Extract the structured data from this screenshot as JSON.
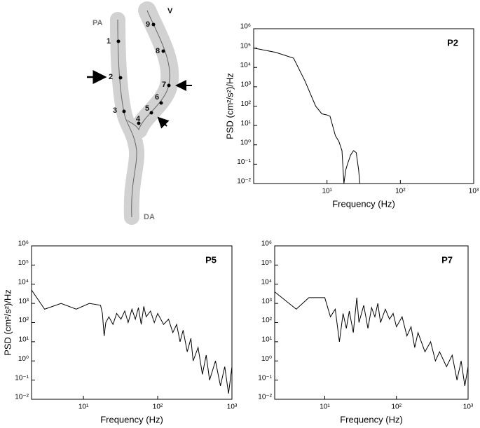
{
  "diagram": {
    "labels": [
      "PA",
      "V",
      "DA",
      "1",
      "2",
      "3",
      "4",
      "5",
      "6",
      "7",
      "8",
      "9"
    ]
  },
  "chart_data": [
    {
      "type": "line",
      "title": "P2",
      "xlabel": "Frequency (Hz)",
      "ylabel": "PSD (cm²/s²)/Hz",
      "xlog": true,
      "ylog": true,
      "color": "#000000",
      "x": [
        1,
        2,
        3.5,
        5,
        7,
        8.5,
        10,
        11,
        13,
        14.5,
        16,
        17,
        18,
        19,
        21,
        23,
        25,
        27,
        28
      ],
      "values": [
        100000,
        60000,
        30000,
        2000,
        100,
        40,
        35,
        30,
        3,
        1.5,
        0.5,
        0.01,
        0.05,
        0.1,
        0.3,
        0.5,
        0.4,
        0.05,
        0.01
      ],
      "xlim": [
        1,
        1000
      ],
      "ylim": [
        0.01,
        1000000
      ],
      "xticks": [
        {
          "value": 10,
          "label": "10¹"
        },
        {
          "value": 100,
          "label": "10²"
        },
        {
          "value": 1000,
          "label": "10³"
        }
      ],
      "yticks": [
        {
          "value": 0.01,
          "label": "10⁻²"
        },
        {
          "value": 0.1,
          "label": "10⁻¹"
        },
        {
          "value": 1,
          "label": "10⁰"
        },
        {
          "value": 10,
          "label": "10¹"
        },
        {
          "value": 100,
          "label": "10²"
        },
        {
          "value": 1000,
          "label": "10³"
        },
        {
          "value": 10000,
          "label": "10⁴"
        },
        {
          "value": 100000,
          "label": "10⁵"
        },
        {
          "value": 1000000,
          "label": "10⁶"
        }
      ]
    },
    {
      "type": "line",
      "title": "P5",
      "xlabel": "Frequency (Hz)",
      "ylabel": "PSD (cm²/s²)/Hz",
      "xlog": true,
      "ylog": true,
      "color": "#000000",
      "x": [
        2,
        3,
        5,
        8,
        12,
        17,
        18,
        19,
        20,
        22,
        25,
        28,
        32,
        36,
        40,
        45,
        50,
        55,
        60,
        65,
        70,
        80,
        90,
        100,
        120,
        140,
        160,
        180,
        200,
        220,
        250,
        280,
        300,
        350,
        400,
        450,
        500,
        600,
        700,
        800,
        900,
        1000
      ],
      "values": [
        5000,
        500,
        1000,
        500,
        1000,
        800,
        300,
        20,
        100,
        200,
        80,
        300,
        150,
        400,
        100,
        500,
        150,
        600,
        80,
        700,
        200,
        400,
        100,
        300,
        80,
        150,
        30,
        80,
        10,
        40,
        3,
        15,
        1,
        5,
        0.2,
        2,
        0.1,
        1,
        0.05,
        0.5,
        0.02,
        0.5
      ],
      "xlim": [
        2,
        1000
      ],
      "ylim": [
        0.01,
        1000000
      ],
      "xticks": [
        {
          "value": 10,
          "label": "10¹"
        },
        {
          "value": 100,
          "label": "10²"
        },
        {
          "value": 1000,
          "label": "10³"
        }
      ],
      "yticks": [
        {
          "value": 0.01,
          "label": "10⁻²"
        },
        {
          "value": 0.1,
          "label": "10⁻¹"
        },
        {
          "value": 1,
          "label": "10⁰"
        },
        {
          "value": 10,
          "label": "10¹"
        },
        {
          "value": 100,
          "label": "10²"
        },
        {
          "value": 1000,
          "label": "10³"
        },
        {
          "value": 10000,
          "label": "10⁴"
        },
        {
          "value": 100000,
          "label": "10⁵"
        },
        {
          "value": 1000000,
          "label": "10⁶"
        }
      ]
    },
    {
      "type": "line",
      "title": "P7",
      "xlabel": "Frequency (Hz)",
      "xlog": true,
      "ylog": true,
      "color": "#000000",
      "x": [
        2,
        4,
        6,
        10,
        12,
        14,
        16,
        18,
        20,
        22,
        25,
        28,
        30,
        35,
        40,
        45,
        50,
        55,
        60,
        70,
        80,
        90,
        100,
        120,
        140,
        160,
        180,
        200,
        250,
        300,
        350,
        400,
        500,
        600,
        700,
        800,
        900,
        1000
      ],
      "values": [
        4000,
        500,
        2000,
        2000,
        200,
        500,
        10,
        300,
        50,
        400,
        30,
        2000,
        100,
        800,
        50,
        600,
        200,
        1000,
        100,
        500,
        150,
        300,
        60,
        200,
        20,
        60,
        5,
        30,
        3,
        10,
        1,
        3,
        0.5,
        2,
        0.1,
        1,
        0.05,
        0.5
      ],
      "xlim": [
        2,
        1000
      ],
      "ylim": [
        0.01,
        1000000
      ],
      "xticks": [
        {
          "value": 10,
          "label": "10¹"
        },
        {
          "value": 100,
          "label": "10²"
        },
        {
          "value": 1000,
          "label": "10³"
        }
      ],
      "yticks": [
        {
          "value": 0.01,
          "label": "10⁻²"
        },
        {
          "value": 0.1,
          "label": "10⁻¹"
        },
        {
          "value": 1,
          "label": "10⁰"
        },
        {
          "value": 10,
          "label": "10¹"
        },
        {
          "value": 100,
          "label": "10²"
        },
        {
          "value": 1000,
          "label": "10³"
        },
        {
          "value": 10000,
          "label": "10⁴"
        },
        {
          "value": 100000,
          "label": "10⁵"
        },
        {
          "value": 1000000,
          "label": "10⁶"
        }
      ]
    }
  ]
}
